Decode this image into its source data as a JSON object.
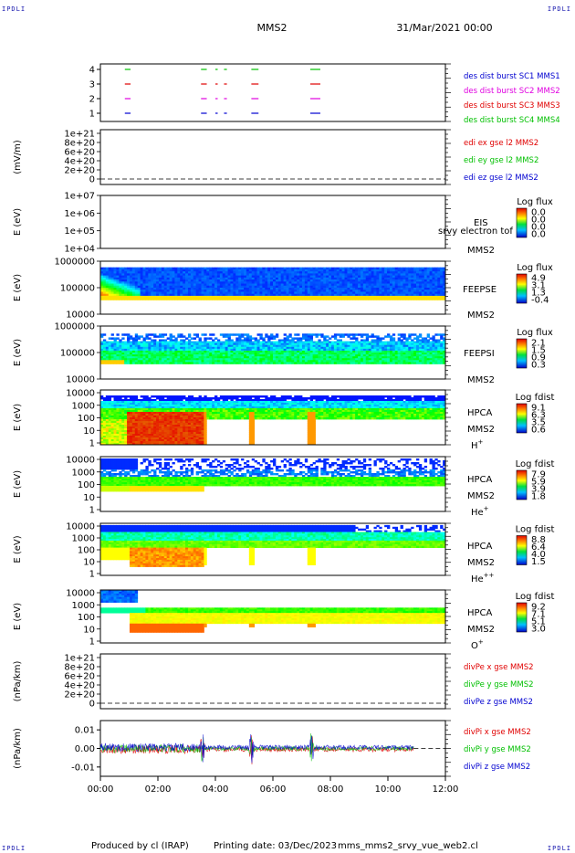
{
  "header": {
    "corner_tag": "IPDLI",
    "spacecraft": "MMS2",
    "datetime": "31/Mar/2021 00:00"
  },
  "footer": {
    "produced_by": "Produced by cl (IRAP)",
    "printing_date": "Printing date: 03/Dec/2023",
    "script_name": "mms_mms2_srvy_vue_web2.cl"
  },
  "colors": {
    "red": "#e00000",
    "green": "#00c000",
    "blue": "#0000d0",
    "magenta": "#e000e0",
    "label_blue": "#1a1ab0"
  },
  "chart_data": [
    {
      "type": "line",
      "id": "burst",
      "yticks": [
        "1",
        "2",
        "3",
        "4"
      ],
      "legend": [
        {
          "text": "des dist burst SC1 MMS1",
          "color": "#0000d0"
        },
        {
          "text": "des dist burst SC2 MMS2",
          "color": "#e000e0"
        },
        {
          "text": "des dist burst SC3 MMS3",
          "color": "#e00000"
        },
        {
          "text": "des dist burst SC4 MMS4",
          "color": "#00c000"
        }
      ],
      "segments_hours": [
        [
          0.85,
          1.05
        ],
        [
          3.5,
          3.7
        ],
        [
          4.0,
          4.08
        ],
        [
          4.3,
          4.4
        ],
        [
          5.25,
          5.5
        ],
        [
          7.3,
          7.65
        ]
      ]
    },
    {
      "type": "line",
      "id": "edi",
      "ylabel": "(mV/m)",
      "yticks": [
        "1e+21",
        "8e+20",
        "6e+20",
        "4e+20",
        "2e+20",
        "0"
      ],
      "legend": [
        {
          "text": "edi ex gse l2 MMS2",
          "color": "#e00000"
        },
        {
          "text": "edi ey gse l2 MMS2",
          "color": "#00c000"
        },
        {
          "text": "edi ez gse l2 MMS2",
          "color": "#0000d0"
        }
      ]
    },
    {
      "type": "heatmap",
      "id": "eis",
      "ylabel": "E (eV)",
      "yticks": [
        "1e+07",
        "1e+06",
        "1e+05",
        "1e+04"
      ],
      "labels": [
        "EIS",
        "MMS2"
      ],
      "overlay_label": "srvy electron tof",
      "colorbar_title": "Log flux",
      "colorbar_ticks": [
        "0.0",
        "0.0",
        "0.0",
        "0.0"
      ]
    },
    {
      "type": "heatmap",
      "id": "feepse",
      "ylabel": "E (eV)",
      "yticks": [
        "1000000",
        "100000",
        "10000"
      ],
      "labels": [
        "FEEPSE",
        "MMS2"
      ],
      "colorbar_title": "Log flux",
      "colorbar_ticks": [
        "4.9",
        "3.1",
        "1.3",
        "-0.4"
      ]
    },
    {
      "type": "heatmap",
      "id": "feepsi",
      "ylabel": "E (eV)",
      "yticks": [
        "1000000",
        "100000",
        "10000"
      ],
      "labels": [
        "FEEPSI",
        "MMS2"
      ],
      "colorbar_title": "Log flux",
      "colorbar_ticks": [
        "2.1",
        "1.5",
        "0.9",
        "0.3"
      ]
    },
    {
      "type": "heatmap",
      "id": "hpca_h",
      "ylabel": "E (eV)",
      "yticks": [
        "10000",
        "1000",
        "100",
        "10",
        "1"
      ],
      "labels": [
        "HPCA",
        "MMS2"
      ],
      "species": "H",
      "species_sup": "+",
      "colorbar_title": "Log fdist",
      "colorbar_ticks": [
        "9.1",
        "6.3",
        "3.5",
        "0.6"
      ]
    },
    {
      "type": "heatmap",
      "id": "hpca_he1",
      "ylabel": "E (eV)",
      "yticks": [
        "10000",
        "1000",
        "100",
        "10",
        "1"
      ],
      "labels": [
        "HPCA",
        "MMS2"
      ],
      "species": "He",
      "species_sup": "+",
      "colorbar_title": "Log fdist",
      "colorbar_ticks": [
        "7.9",
        "5.9",
        "3.9",
        "1.8"
      ]
    },
    {
      "type": "heatmap",
      "id": "hpca_he2",
      "ylabel": "E (eV)",
      "yticks": [
        "10000",
        "1000",
        "100",
        "10",
        "1"
      ],
      "labels": [
        "HPCA",
        "MMS2"
      ],
      "species": "He",
      "species_sup": "++",
      "colorbar_title": "Log fdist",
      "colorbar_ticks": [
        "8.8",
        "6.4",
        "4.0",
        "1.5"
      ]
    },
    {
      "type": "heatmap",
      "id": "hpca_o",
      "ylabel": "E (eV)",
      "yticks": [
        "10000",
        "1000",
        "100",
        "10",
        "1"
      ],
      "labels": [
        "HPCA",
        "MMS2"
      ],
      "species": "O",
      "species_sup": "+",
      "colorbar_title": "Log fdist",
      "colorbar_ticks": [
        "9.2",
        "7.1",
        "5.1",
        "3.0"
      ]
    },
    {
      "type": "line",
      "id": "divpe",
      "ylabel": "(nPa/km)",
      "yticks": [
        "1e+21",
        "8e+20",
        "6e+20",
        "4e+20",
        "2e+20",
        "0"
      ],
      "legend": [
        {
          "text": "divPe x gse MMS2",
          "color": "#e00000"
        },
        {
          "text": "divPe y gse MMS2",
          "color": "#00c000"
        },
        {
          "text": "divPe z gse MMS2",
          "color": "#0000d0"
        }
      ]
    },
    {
      "type": "line",
      "id": "divpi",
      "ylabel": "(nPa/km)",
      "yticks": [
        "0.01",
        "0.00",
        "-0.01"
      ],
      "ylim": [
        -0.015,
        0.015
      ],
      "legend": [
        {
          "text": "divPi x gse MMS2",
          "color": "#e00000"
        },
        {
          "text": "divPi y gse MMS2",
          "color": "#00c000"
        },
        {
          "text": "divPi z gse MMS2",
          "color": "#0000d0"
        }
      ],
      "spikes_hours": [
        3.55,
        5.25,
        7.35
      ],
      "data_end_hour": 10.9
    }
  ],
  "x_axis": {
    "ticks": [
      "00:00",
      "02:00",
      "04:00",
      "06:00",
      "08:00",
      "10:00",
      "12:00"
    ],
    "range_hours": [
      0,
      12
    ]
  }
}
